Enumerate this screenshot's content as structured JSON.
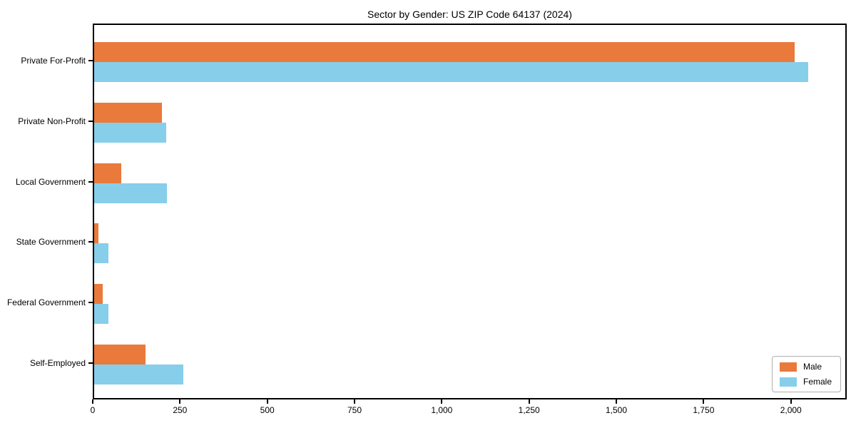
{
  "title": "Sector by Gender: US ZIP Code 64137 (2024)",
  "chart_data": {
    "type": "bar",
    "orientation": "horizontal",
    "title": "Sector by Gender: US ZIP Code 64137 (2024)",
    "categories": [
      "Private For-Profit",
      "Private Non-Profit",
      "Local Government",
      "State Government",
      "Federal Government",
      "Self-Employed"
    ],
    "series": [
      {
        "name": "Male",
        "color": "#e97a3c",
        "values": [
          2014,
          195,
          78,
          13,
          24,
          148
        ]
      },
      {
        "name": "Female",
        "color": "#87ceeb",
        "values": [
          2053,
          208,
          210,
          41,
          41,
          257
        ]
      }
    ],
    "xlim": [
      0,
      2160
    ],
    "x_ticks": [
      0,
      250,
      500,
      750,
      1000,
      1250,
      1500,
      1750,
      2000
    ],
    "x_tick_labels": [
      "0",
      "250",
      "500",
      "750",
      "1,000",
      "1,250",
      "1,500",
      "1,750",
      "2,000"
    ],
    "xlabel": "",
    "ylabel": "",
    "grid": false,
    "legend_position": "lower right",
    "legend_items": [
      "Male",
      "Female"
    ]
  }
}
